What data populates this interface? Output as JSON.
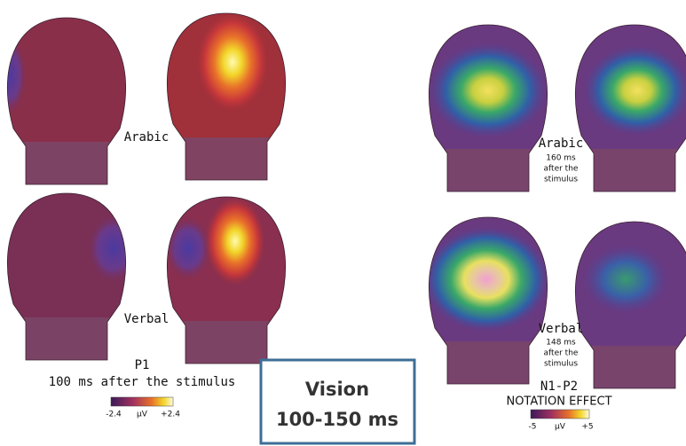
{
  "left_panel": {
    "rows": [
      {
        "label": "Arabic"
      },
      {
        "label": "Verbal"
      }
    ],
    "component": "P1",
    "caption": "100 ms after the stimulus",
    "scale": {
      "min": "-2.4",
      "unit": "µV",
      "max": "+2.4"
    }
  },
  "right_panel": {
    "rows": [
      {
        "label": "Arabic",
        "note": [
          "160 ms",
          "after the",
          "stimulus"
        ]
      },
      {
        "label": "Verbal",
        "note": [
          "148 ms",
          "after the",
          "stimulus"
        ]
      }
    ],
    "component": "N1-P2",
    "caption": "NOTATION EFFECT",
    "scale": {
      "min": "-5",
      "unit": "µV",
      "max": "+5"
    }
  },
  "box": {
    "lines": [
      "Vision",
      "100-150 ms"
    ]
  }
}
